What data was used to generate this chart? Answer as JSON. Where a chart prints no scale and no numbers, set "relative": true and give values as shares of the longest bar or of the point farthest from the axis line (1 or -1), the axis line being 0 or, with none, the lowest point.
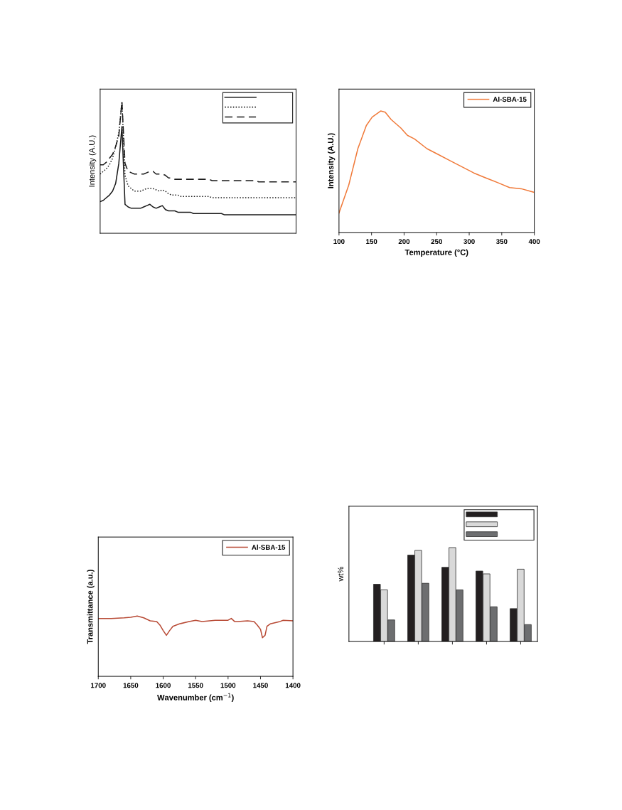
{
  "chart_data": [
    {
      "type": "line",
      "ylabel": "Intensity (A.U.)",
      "relative": true,
      "categories": [
        null,
        null,
        null,
        null,
        null,
        null,
        null,
        null,
        null,
        null,
        null,
        null,
        null,
        null,
        null,
        null,
        null,
        null,
        null,
        null,
        null,
        null,
        null,
        null,
        null,
        null,
        null,
        null,
        null,
        null,
        null,
        null,
        null,
        null,
        null,
        null,
        null,
        null,
        null,
        null,
        null,
        null,
        null,
        null,
        null,
        null,
        null,
        null,
        null,
        null,
        null,
        null,
        null,
        null,
        null,
        null,
        null,
        null,
        null,
        null,
        null,
        null,
        null,
        null
      ],
      "series": [
        {
          "color": "#1a1a1a",
          "line_style": "solid",
          "values": [
            0.24,
            0.25,
            0.27,
            0.29,
            0.32,
            0.38,
            0.53,
            0.81,
            0.22,
            0.2,
            0.19,
            0.19,
            0.19,
            0.19,
            0.2,
            0.21,
            0.22,
            0.2,
            0.19,
            0.2,
            0.21,
            0.18,
            0.17,
            0.17,
            0.17,
            0.16,
            0.16,
            0.16,
            0.16,
            0.16,
            0.15,
            0.15,
            0.15,
            0.15,
            0.15,
            0.15,
            0.15,
            0.15,
            0.15,
            0.15,
            0.14,
            0.14,
            0.14,
            0.14,
            0.14,
            0.14,
            0.14,
            0.14,
            0.14,
            0.14,
            0.14,
            0.14,
            0.14,
            0.14,
            0.14,
            0.14,
            0.14,
            0.14,
            0.14,
            0.14,
            0.14,
            0.14,
            0.14,
            0.14
          ]
        },
        {
          "color": "#1a1a1a",
          "line_style": "dotted",
          "values": [
            0.45,
            0.47,
            0.49,
            0.52,
            0.57,
            0.66,
            0.76,
            1.0,
            0.44,
            0.36,
            0.34,
            0.32,
            0.32,
            0.32,
            0.33,
            0.34,
            0.34,
            0.34,
            0.33,
            0.32,
            0.33,
            0.32,
            0.3,
            0.29,
            0.29,
            0.29,
            0.28,
            0.28,
            0.28,
            0.28,
            0.28,
            0.28,
            0.28,
            0.28,
            0.28,
            0.28,
            0.27,
            0.27,
            0.27,
            0.27,
            0.27,
            0.27,
            0.27,
            0.27,
            0.27,
            0.27,
            0.27,
            0.27,
            0.27,
            0.27,
            0.27,
            0.27,
            0.27,
            0.27,
            0.27,
            0.27,
            0.27,
            0.27,
            0.27,
            0.27,
            0.27,
            0.27,
            0.27,
            0.27
          ]
        },
        {
          "color": "#1a1a1a",
          "line_style": "dashed",
          "values": [
            0.52,
            0.52,
            0.54,
            0.57,
            0.6,
            0.66,
            0.74,
            1.0,
            0.53,
            0.47,
            0.46,
            0.45,
            0.45,
            0.45,
            0.45,
            0.46,
            0.47,
            0.47,
            0.45,
            0.45,
            0.45,
            0.44,
            0.42,
            0.42,
            0.41,
            0.41,
            0.41,
            0.41,
            0.41,
            0.41,
            0.41,
            0.41,
            0.41,
            0.41,
            0.41,
            0.41,
            0.4,
            0.4,
            0.4,
            0.4,
            0.4,
            0.4,
            0.4,
            0.4,
            0.4,
            0.4,
            0.4,
            0.4,
            0.4,
            0.4,
            0.4,
            0.39,
            0.39,
            0.39,
            0.39,
            0.39,
            0.39,
            0.39,
            0.39,
            0.39,
            0.39,
            0.39,
            0.39,
            0.39
          ]
        }
      ]
    },
    {
      "type": "line",
      "xlabel": "Temperature (°C)",
      "ylabel": "Intensity (A.U.)",
      "relative": true,
      "legend": "top right",
      "xlim": [
        100,
        400
      ],
      "xticks": [
        100,
        150,
        200,
        250,
        300,
        350,
        400
      ],
      "x": [
        100,
        115,
        129,
        142,
        151,
        164,
        171,
        180,
        195,
        205,
        216,
        235,
        253,
        271,
        289,
        307,
        325,
        344,
        362,
        380,
        400
      ],
      "series": [
        {
          "name": "Al-SBA-15",
          "color": "#f07a3a",
          "values": [
            0.16,
            0.39,
            0.69,
            0.88,
            0.95,
            1.0,
            0.99,
            0.93,
            0.86,
            0.8,
            0.77,
            0.69,
            0.64,
            0.59,
            0.54,
            0.49,
            0.45,
            0.41,
            0.37,
            0.36,
            0.33
          ]
        }
      ]
    },
    {
      "type": "line",
      "xlabel": "Wavenumber (cm$^{−1}$)",
      "ylabel": "Transmittance (a.u.)",
      "relative": true,
      "legend": "top right",
      "xlim": [
        1700,
        1400
      ],
      "xticks": [
        1700,
        1650,
        1600,
        1550,
        1500,
        1450,
        1400
      ],
      "x": [
        1700,
        1680,
        1660,
        1650,
        1640,
        1630,
        1620,
        1610,
        1605,
        1600,
        1595,
        1590,
        1585,
        1575,
        1560,
        1550,
        1540,
        1520,
        1500,
        1495,
        1490,
        1485,
        1470,
        1460,
        1455,
        1450,
        1447,
        1443,
        1440,
        1435,
        1420,
        1415,
        1400
      ],
      "series": [
        {
          "name": "Al-SBA-15",
          "color": "#b84a35",
          "values": [
            0.96,
            0.96,
            0.97,
            0.98,
            1.0,
            0.97,
            0.92,
            0.91,
            0.85,
            0.76,
            0.68,
            0.76,
            0.83,
            0.87,
            0.91,
            0.93,
            0.91,
            0.93,
            0.93,
            0.96,
            0.91,
            0.91,
            0.92,
            0.91,
            0.85,
            0.78,
            0.64,
            0.68,
            0.83,
            0.87,
            0.91,
            0.93,
            0.92
          ]
        }
      ]
    },
    {
      "type": "bar",
      "ylabel": "wt%",
      "relative": true,
      "categories": [
        null,
        null,
        null,
        null,
        null
      ],
      "series": [
        {
          "color": "#231f20",
          "values": [
            0.61,
            0.92,
            0.79,
            0.75,
            0.35
          ]
        },
        {
          "color": "#d9d9d9",
          "values": [
            0.55,
            0.97,
            1.0,
            0.72,
            0.77
          ]
        },
        {
          "color": "#6d6e70",
          "values": [
            0.23,
            0.62,
            0.55,
            0.37,
            0.18
          ]
        }
      ]
    }
  ]
}
